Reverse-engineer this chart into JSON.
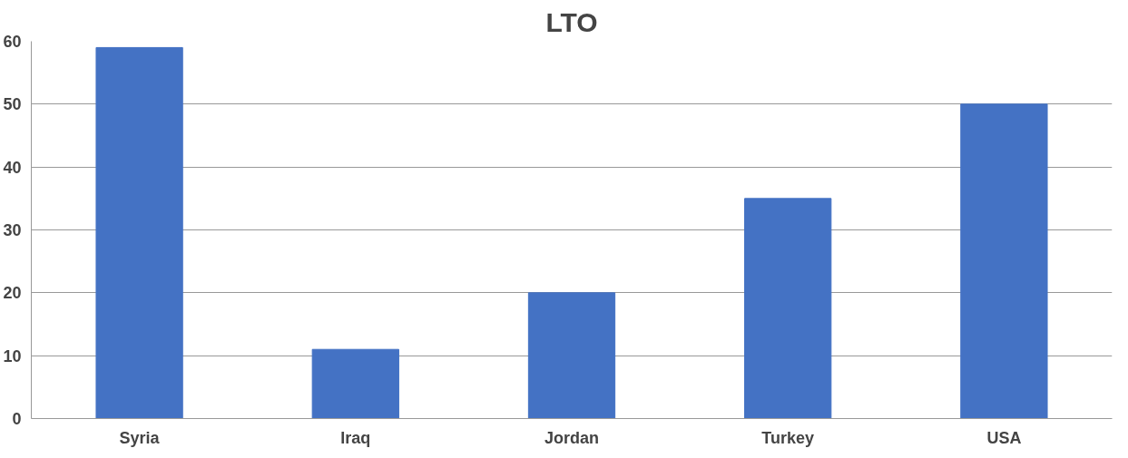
{
  "chart_data": {
    "type": "bar",
    "title": "LTO",
    "categories": [
      "Syria",
      "Iraq",
      "Jordan",
      "Turkey",
      "USA"
    ],
    "values": [
      59,
      11,
      20,
      35,
      50
    ],
    "color": "#4472c4",
    "ylim": [
      0,
      60
    ],
    "yticks": [
      0,
      10,
      20,
      30,
      40,
      50,
      60
    ],
    "grid": "y"
  }
}
